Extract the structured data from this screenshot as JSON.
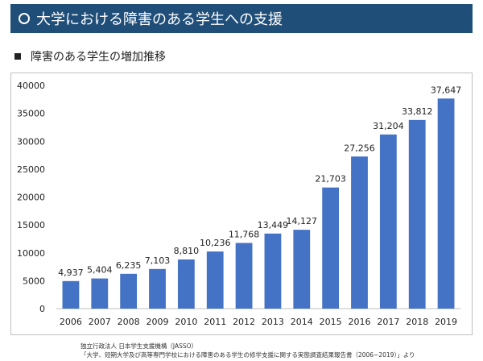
{
  "header": {
    "title": "大学における障害のある学生への支援"
  },
  "section": {
    "title": "障害のある学生の増加推移"
  },
  "source": {
    "line1": "独立行政法人 日本学生支援機構（JASSO）",
    "line2": "「大学、短期大学及び高等専門学校における障害のある学生の修学支援に関する実態調査結果報告書（2006~2019）」より"
  },
  "colors": {
    "header_bg": "#1f4e79",
    "bar": "#4472c4"
  },
  "chart_data": {
    "type": "bar",
    "title": "",
    "xlabel": "",
    "ylabel": "",
    "categories": [
      "2006",
      "2007",
      "2008",
      "2009",
      "2010",
      "2011",
      "2012",
      "2013",
      "2014",
      "2015",
      "2016",
      "2017",
      "2018",
      "2019"
    ],
    "values": [
      4937,
      5404,
      6235,
      7103,
      8810,
      10236,
      11768,
      13449,
      14127,
      21703,
      27256,
      31204,
      33812,
      37647
    ],
    "data_labels": [
      "4,937",
      "5,404",
      "6,235",
      "7,103",
      "8,810",
      "10,236",
      "11,768",
      "13,449",
      "14,127",
      "21,703",
      "27,256",
      "31,204",
      "33,812",
      "37,647"
    ],
    "ylim": [
      0,
      40000
    ],
    "yticks": [
      0,
      5000,
      10000,
      15000,
      20000,
      25000,
      30000,
      35000,
      40000
    ],
    "grid": false,
    "legend": "none"
  }
}
